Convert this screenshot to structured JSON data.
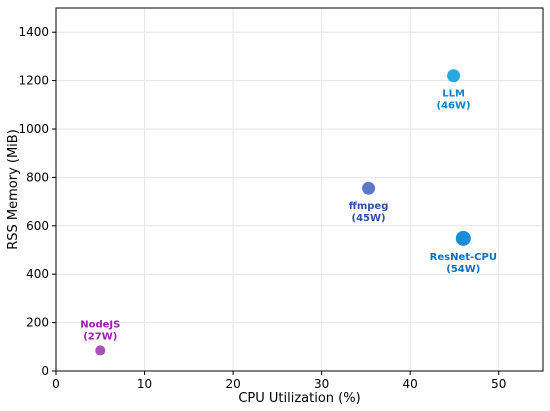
{
  "chart_data": {
    "type": "scatter",
    "title": "",
    "xlabel": "CPU Utilization (%)",
    "ylabel": "RSS Memory (MiB)",
    "xlim": [
      0,
      55
    ],
    "ylim": [
      0,
      1500
    ],
    "xticks": [
      0,
      10,
      20,
      30,
      40,
      50
    ],
    "yticks": [
      0,
      200,
      400,
      600,
      800,
      1000,
      1200,
      1400
    ],
    "grid": true,
    "points": [
      {
        "name": "NodeJS",
        "power": "(27W)",
        "x": 5,
        "y": 85,
        "color": "#a346b8",
        "size": "small",
        "label_position": "above"
      },
      {
        "name": "ffmpeg",
        "power": "(45W)",
        "x": 35.3,
        "y": 755,
        "color": "#5470c6",
        "size": "medium",
        "label_position": "below"
      },
      {
        "name": "LLM",
        "power": "(46W)",
        "x": 44.9,
        "y": 1220,
        "color": "#1ba3dd",
        "size": "medium",
        "label_position": "below"
      },
      {
        "name": "ResNet-CPU",
        "power": "(54W)",
        "x": 46,
        "y": 548,
        "color": "#0f86d6",
        "size": "large",
        "label_position": "below"
      }
    ],
    "label_colors": {
      "NodeJS": "#9a1fae",
      "ffmpeg": "#2f4fa8",
      "LLM": "#0b86c8",
      "ResNet-CPU": "#0b6fc4"
    }
  }
}
